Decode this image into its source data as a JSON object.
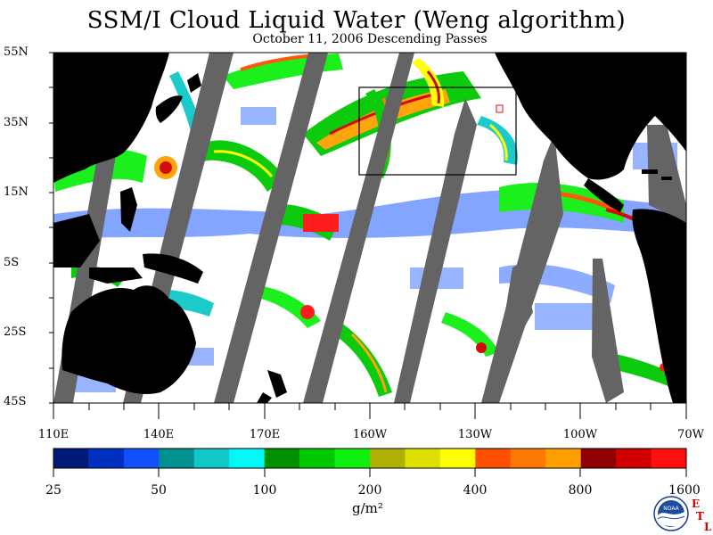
{
  "title": "SSM/I Cloud Liquid Water (Weng algorithm)",
  "subtitle": "October 11, 2006  Descending Passes",
  "lat_labels": [
    "55N",
    "35N",
    "15N",
    "5S",
    "25S",
    "45S"
  ],
  "lon_labels": [
    "110E",
    "140E",
    "170E",
    "160W",
    "130W",
    "100W",
    "70W"
  ],
  "colorbar": {
    "colors": [
      "#001a7a",
      "#0030c0",
      "#1050ff",
      "#009090",
      "#10c8c8",
      "#00f8f8",
      "#009000",
      "#00c800",
      "#10f010",
      "#b0b000",
      "#e0e000",
      "#ffff00",
      "#ff5000",
      "#ff7800",
      "#ffa000",
      "#900000",
      "#d00000",
      "#ff1010"
    ],
    "labels": [
      "25",
      "50",
      "100",
      "200",
      "400",
      "800",
      "1600"
    ]
  },
  "unit": "g/m²",
  "logo": {
    "text": "NOAA",
    "etl_letters": [
      "E",
      "T",
      "L"
    ]
  },
  "map_colors": {
    "land": "#000000",
    "ocean": "#ffffff",
    "missing_swath": "#646464",
    "box": "#000000",
    "marker": "#ff0000"
  }
}
